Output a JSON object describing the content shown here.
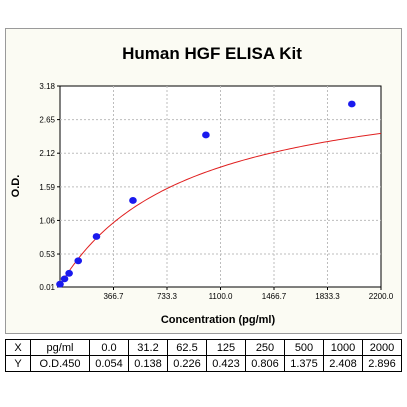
{
  "chart_data": {
    "type": "scatter",
    "title": "Human HGF ELISA Kit",
    "xlabel": "Concentration (pg/ml)",
    "ylabel": "O.D.",
    "xlim": [
      0,
      2200
    ],
    "ylim": [
      0.01,
      3.18
    ],
    "xticks": [
      "366.7",
      "733.3",
      "1100.0",
      "1466.7",
      "1833.3",
      "2200.0"
    ],
    "yticks": [
      "0.01",
      "0.53",
      "1.06",
      "1.59",
      "2.12",
      "2.65",
      "3.18"
    ],
    "xtick_values": [
      366.7,
      733.3,
      1100.0,
      1466.7,
      1833.3,
      2200.0
    ],
    "ytick_values": [
      0.01,
      0.53,
      1.06,
      1.59,
      2.12,
      2.65,
      3.18
    ],
    "grid": true,
    "series": [
      {
        "points": [
          {
            "x": 0.0,
            "y": 0.054
          },
          {
            "x": 31.2,
            "y": 0.138
          },
          {
            "x": 62.5,
            "y": 0.226
          },
          {
            "x": 125,
            "y": 0.423
          },
          {
            "x": 250,
            "y": 0.806
          },
          {
            "x": 500,
            "y": 1.375
          },
          {
            "x": 1000,
            "y": 2.408
          },
          {
            "x": 2000,
            "y": 2.896
          }
        ],
        "color": "#1a1aee"
      },
      {
        "type": "curve",
        "color": "#e02020"
      }
    ]
  },
  "table": {
    "rows": [
      {
        "label": "X",
        "unit": "pg/ml",
        "values": [
          "0.0",
          "31.2",
          "62.5",
          "125",
          "250",
          "500",
          "1000",
          "2000"
        ]
      },
      {
        "label": "Y",
        "unit": "O.D.450",
        "values": [
          "0.054",
          "0.138",
          "0.226",
          "0.423",
          "0.806",
          "1.375",
          "2.408",
          "2.896"
        ]
      }
    ]
  }
}
